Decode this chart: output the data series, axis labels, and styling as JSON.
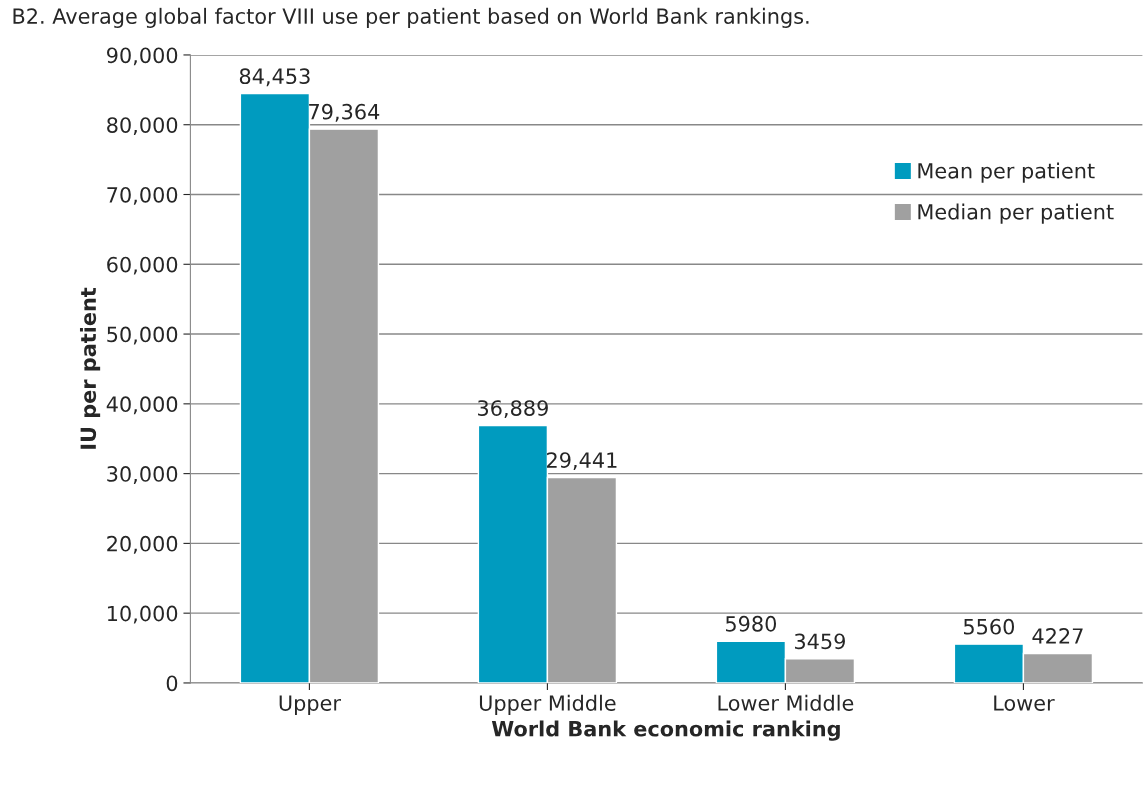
{
  "chart_data": {
    "type": "bar",
    "title": "B2. Average global factor VIII use per patient based on World Bank rankings.",
    "xlabel": "World Bank economic ranking",
    "ylabel": "IU per patient",
    "categories": [
      "Upper",
      "Upper Middle",
      "Lower Middle",
      "Lower"
    ],
    "series": [
      {
        "name": "Mean per patient",
        "color": "#009bbf",
        "values": [
          84453,
          36889,
          5980,
          5560
        ],
        "value_labels": [
          "84,453",
          "36,889",
          "5980",
          "5560"
        ]
      },
      {
        "name": "Median per patient",
        "color": "#a0a0a0",
        "values": [
          79364,
          29441,
          3459,
          4227
        ],
        "value_labels": [
          "79,364",
          "29,441",
          "3459",
          "4227"
        ]
      }
    ],
    "ylim": [
      0,
      90000
    ],
    "yticks": [
      {
        "value": 0,
        "label": "0"
      },
      {
        "value": 10000,
        "label": "10,000"
      },
      {
        "value": 20000,
        "label": "20,000"
      },
      {
        "value": 30000,
        "label": "30,000"
      },
      {
        "value": 40000,
        "label": "40,000"
      },
      {
        "value": 50000,
        "label": "50,000"
      },
      {
        "value": 60000,
        "label": "60,000"
      },
      {
        "value": 70000,
        "label": "70,000"
      },
      {
        "value": 80000,
        "label": "80,000"
      },
      {
        "value": 90000,
        "label": "90,000"
      }
    ],
    "grid": "y",
    "legend": "right"
  }
}
